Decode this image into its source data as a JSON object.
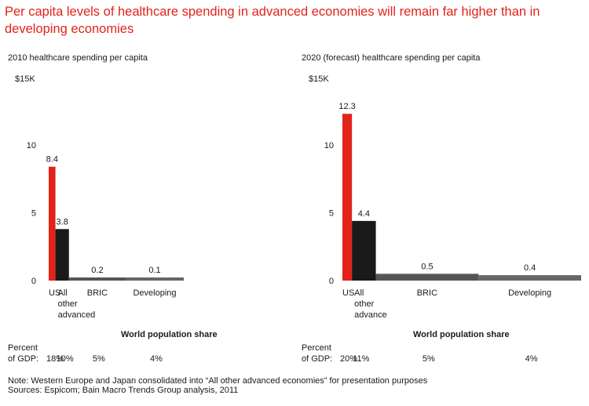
{
  "title": "Per capita levels of healthcare spending in advanced economies will remain far higher than in developing economies",
  "colors": {
    "us": "#e2231a",
    "advanced": "#1a1a1a",
    "bric": "#555555",
    "developing": "#666666",
    "title": "#e2231a"
  },
  "chart_data": [
    {
      "type": "bar",
      "title": "2010 healthcare spending per capita",
      "y_unit_label": "$15K",
      "ylim": [
        0,
        15
      ],
      "y_ticks": [
        "0",
        "5",
        "10"
      ],
      "categories": [
        {
          "label": "US",
          "value": 8.4,
          "value_label": "8.4",
          "population_share_pct": 5,
          "gdp_label": "18%"
        },
        {
          "label": "All other advanced",
          "lines": [
            "All",
            "other",
            "advanced"
          ],
          "value": 3.8,
          "value_label": "3.8",
          "population_share_pct": 10,
          "gdp_label": "10%"
        },
        {
          "label": "BRIC",
          "value": 0.2,
          "value_label": "0.2",
          "population_share_pct": 42,
          "gdp_label": "5%"
        },
        {
          "label": "Developing",
          "value": 0.1,
          "value_label": "0.1",
          "population_share_pct": 43,
          "gdp_label": "4%"
        }
      ],
      "x_axis_title": "World population share",
      "gdp_row_label": [
        "Percent",
        "of GDP:"
      ]
    },
    {
      "type": "bar",
      "title": "2020 (forecast) healthcare spending per capita",
      "y_unit_label": "$15K",
      "ylim": [
        0,
        15
      ],
      "y_ticks": [
        "0",
        "5",
        "10"
      ],
      "categories": [
        {
          "label": "US",
          "value": 12.3,
          "value_label": "12.3",
          "population_share_pct": 4,
          "gdp_label": "20%"
        },
        {
          "label": "All other advance",
          "lines": [
            "All",
            "other",
            "advance"
          ],
          "value": 4.4,
          "value_label": "4.4",
          "population_share_pct": 10,
          "gdp_label": "11%"
        },
        {
          "label": "BRIC",
          "value": 0.5,
          "value_label": "0.5",
          "population_share_pct": 43,
          "gdp_label": "5%"
        },
        {
          "label": "Developing",
          "value": 0.4,
          "value_label": "0.4",
          "population_share_pct": 43,
          "gdp_label": "4%"
        }
      ],
      "x_axis_title": "World population share",
      "gdp_row_label": [
        "Percent",
        "of GDP:"
      ]
    }
  ],
  "notes": {
    "note": "Note: Western Europe and Japan consolidated into “All other advanced economies” for presentation purposes",
    "sources": "Sources: Espicom; Bain Macro Trends Group analysis, 2011"
  }
}
